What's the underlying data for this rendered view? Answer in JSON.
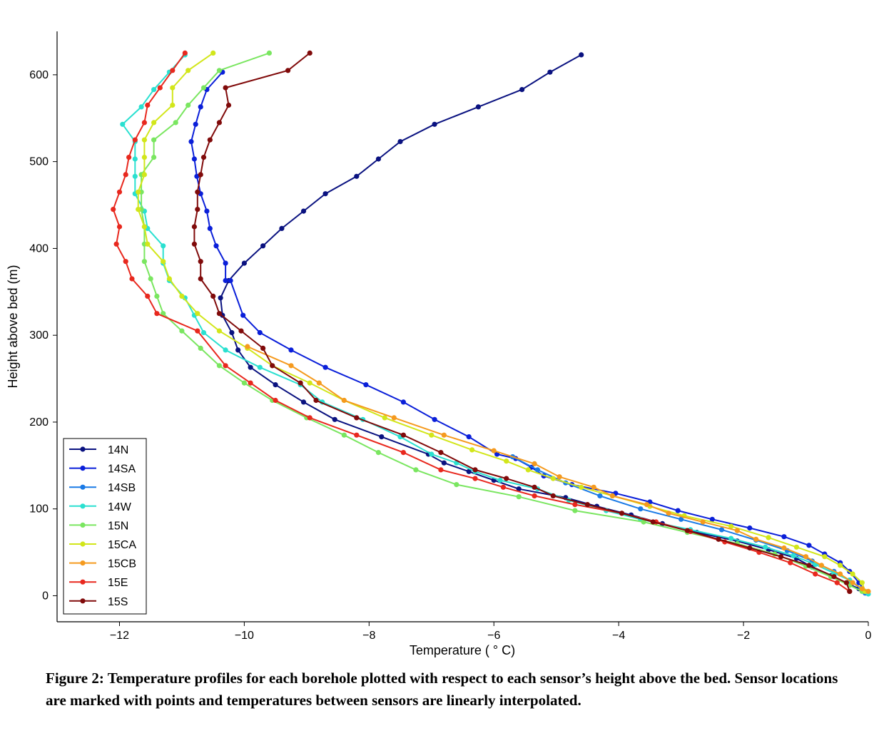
{
  "caption": "Figure 2: Temperature profiles for each borehole plotted with respect to each sensor’s height above the bed. Sensor locations are marked with points and temperatures between sensors are linearly interpolated.",
  "chart_data": {
    "type": "line",
    "title": "",
    "xlabel": "Temperature ( ° C)",
    "ylabel": "Height above bed (m)",
    "xlim": [
      -13,
      0
    ],
    "ylim": [
      -30,
      650
    ],
    "xticks": [
      -12,
      -10,
      -8,
      -6,
      -4,
      -2,
      0
    ],
    "yticks": [
      0,
      100,
      200,
      300,
      400,
      500,
      600
    ],
    "grid": false,
    "legend_position": "bottom-left",
    "series": [
      {
        "name": "14N",
        "color": "#0a1280",
        "points": [
          [
            -4.6,
            623
          ],
          [
            -5.1,
            603
          ],
          [
            -5.55,
            583
          ],
          [
            -6.25,
            563
          ],
          [
            -6.95,
            543
          ],
          [
            -7.5,
            523
          ],
          [
            -7.85,
            503
          ],
          [
            -8.2,
            483
          ],
          [
            -8.7,
            463
          ],
          [
            -9.05,
            443
          ],
          [
            -9.4,
            423
          ],
          [
            -9.7,
            403
          ],
          [
            -10.0,
            383
          ],
          [
            -10.25,
            363
          ],
          [
            -10.38,
            343
          ],
          [
            -10.35,
            323
          ],
          [
            -10.2,
            303
          ],
          [
            -10.1,
            283
          ],
          [
            -9.9,
            263
          ],
          [
            -9.5,
            243
          ],
          [
            -9.05,
            223
          ],
          [
            -8.55,
            203
          ],
          [
            -7.8,
            183
          ],
          [
            -7.05,
            163
          ],
          [
            -6.8,
            153
          ],
          [
            -6.4,
            143
          ],
          [
            -6.0,
            133
          ],
          [
            -5.6,
            123
          ],
          [
            -4.85,
            113
          ],
          [
            -4.35,
            103
          ],
          [
            -3.8,
            93
          ],
          [
            -3.3,
            83
          ],
          [
            -2.75,
            73
          ],
          [
            -2.1,
            63
          ],
          [
            -1.6,
            53
          ],
          [
            -1.15,
            43
          ],
          [
            -0.9,
            33
          ],
          [
            -0.6,
            23
          ],
          [
            -0.3,
            13
          ],
          [
            -0.15,
            8
          ]
        ]
      },
      {
        "name": "14SA",
        "color": "#0a1fd9",
        "points": [
          [
            -10.35,
            603
          ],
          [
            -10.6,
            583
          ],
          [
            -10.7,
            563
          ],
          [
            -10.78,
            543
          ],
          [
            -10.85,
            523
          ],
          [
            -10.8,
            503
          ],
          [
            -10.76,
            483
          ],
          [
            -10.7,
            463
          ],
          [
            -10.6,
            443
          ],
          [
            -10.55,
            423
          ],
          [
            -10.45,
            403
          ],
          [
            -10.3,
            383
          ],
          [
            -10.3,
            363
          ],
          [
            -10.22,
            363
          ],
          [
            -10.02,
            323
          ],
          [
            -9.75,
            303
          ],
          [
            -9.25,
            283
          ],
          [
            -8.7,
            263
          ],
          [
            -8.05,
            243
          ],
          [
            -7.45,
            223
          ],
          [
            -6.95,
            203
          ],
          [
            -6.4,
            183
          ],
          [
            -5.95,
            163
          ],
          [
            -5.65,
            158
          ],
          [
            -5.4,
            148
          ],
          [
            -5.2,
            138
          ],
          [
            -4.75,
            128
          ],
          [
            -4.05,
            118
          ],
          [
            -3.5,
            108
          ],
          [
            -3.05,
            98
          ],
          [
            -2.5,
            88
          ],
          [
            -1.9,
            78
          ],
          [
            -1.35,
            68
          ],
          [
            -0.95,
            58
          ],
          [
            -0.7,
            48
          ],
          [
            -0.45,
            38
          ],
          [
            -0.3,
            28
          ],
          [
            -0.15,
            15
          ],
          [
            -0.05,
            5
          ]
        ]
      },
      {
        "name": "14SB",
        "color": "#1a7ae6",
        "points": [
          [
            -5.7,
            160
          ],
          [
            -5.3,
            145
          ],
          [
            -4.85,
            130
          ],
          [
            -4.3,
            115
          ],
          [
            -3.65,
            100
          ],
          [
            -3.0,
            88
          ],
          [
            -2.35,
            76
          ],
          [
            -1.8,
            64
          ],
          [
            -1.3,
            52
          ],
          [
            -0.9,
            40
          ],
          [
            -0.55,
            28
          ],
          [
            -0.3,
            18
          ],
          [
            -0.12,
            8
          ],
          [
            -0.05,
            3
          ]
        ]
      },
      {
        "name": "14W",
        "color": "#2ae0d0",
        "points": [
          [
            -10.95,
            623
          ],
          [
            -11.2,
            603
          ],
          [
            -11.45,
            583
          ],
          [
            -11.65,
            563
          ],
          [
            -11.95,
            543
          ],
          [
            -11.75,
            523
          ],
          [
            -11.75,
            503
          ],
          [
            -11.75,
            483
          ],
          [
            -11.75,
            463
          ],
          [
            -11.6,
            443
          ],
          [
            -11.55,
            423
          ],
          [
            -11.3,
            403
          ],
          [
            -11.3,
            383
          ],
          [
            -11.2,
            363
          ],
          [
            -10.95,
            343
          ],
          [
            -10.8,
            323
          ],
          [
            -10.65,
            303
          ],
          [
            -10.3,
            283
          ],
          [
            -9.75,
            263
          ],
          [
            -9.1,
            243
          ],
          [
            -8.75,
            223
          ],
          [
            -8.1,
            203
          ],
          [
            -7.5,
            183
          ],
          [
            -7.0,
            163
          ],
          [
            -6.6,
            153
          ],
          [
            -6.3,
            143
          ],
          [
            -5.9,
            133
          ],
          [
            -5.3,
            123
          ],
          [
            -4.8,
            110
          ],
          [
            -4.2,
            98
          ],
          [
            -3.65,
            88
          ],
          [
            -2.85,
            76
          ],
          [
            -2.2,
            66
          ],
          [
            -1.65,
            56
          ],
          [
            -1.2,
            46
          ],
          [
            -0.85,
            36
          ],
          [
            -0.55,
            26
          ],
          [
            -0.3,
            18
          ],
          [
            -0.1,
            8
          ],
          [
            0.0,
            2
          ]
        ]
      },
      {
        "name": "15N",
        "color": "#7ae660",
        "points": [
          [
            -9.6,
            625
          ],
          [
            -10.4,
            605
          ],
          [
            -10.65,
            585
          ],
          [
            -10.9,
            565
          ],
          [
            -11.1,
            545
          ],
          [
            -11.45,
            525
          ],
          [
            -11.45,
            505
          ],
          [
            -11.65,
            485
          ],
          [
            -11.65,
            465
          ],
          [
            -11.65,
            445
          ],
          [
            -11.6,
            425
          ],
          [
            -11.6,
            405
          ],
          [
            -11.6,
            385
          ],
          [
            -11.5,
            365
          ],
          [
            -11.4,
            345
          ],
          [
            -11.3,
            325
          ],
          [
            -11.0,
            305
          ],
          [
            -10.7,
            285
          ],
          [
            -10.4,
            265
          ],
          [
            -10.0,
            245
          ],
          [
            -9.55,
            225
          ],
          [
            -9.0,
            205
          ],
          [
            -8.4,
            185
          ],
          [
            -7.85,
            165
          ],
          [
            -7.25,
            145
          ],
          [
            -6.6,
            128
          ],
          [
            -5.6,
            114
          ],
          [
            -4.7,
            98
          ],
          [
            -3.6,
            85
          ],
          [
            -2.9,
            73
          ],
          [
            -2.1,
            60
          ],
          [
            -1.5,
            48
          ],
          [
            -1.0,
            34
          ],
          [
            -0.6,
            22
          ],
          [
            -0.3,
            12
          ],
          [
            -0.1,
            5
          ]
        ]
      },
      {
        "name": "15CA",
        "color": "#d2e61a",
        "points": [
          [
            -10.5,
            625
          ],
          [
            -10.9,
            605
          ],
          [
            -11.15,
            585
          ],
          [
            -11.15,
            565
          ],
          [
            -11.45,
            545
          ],
          [
            -11.6,
            525
          ],
          [
            -11.6,
            505
          ],
          [
            -11.6,
            485
          ],
          [
            -11.7,
            465
          ],
          [
            -11.7,
            445
          ],
          [
            -11.6,
            425
          ],
          [
            -11.55,
            405
          ],
          [
            -11.3,
            385
          ],
          [
            -11.2,
            365
          ],
          [
            -11.0,
            345
          ],
          [
            -10.75,
            325
          ],
          [
            -10.4,
            305
          ],
          [
            -9.95,
            285
          ],
          [
            -9.55,
            265
          ],
          [
            -8.95,
            245
          ],
          [
            -8.4,
            225
          ],
          [
            -7.75,
            205
          ],
          [
            -7.0,
            185
          ],
          [
            -6.35,
            168
          ],
          [
            -5.8,
            155
          ],
          [
            -5.45,
            145
          ],
          [
            -5.05,
            135
          ],
          [
            -4.6,
            125
          ],
          [
            -4.1,
            115
          ],
          [
            -3.5,
            103
          ],
          [
            -2.95,
            92
          ],
          [
            -2.2,
            80
          ],
          [
            -1.6,
            67
          ],
          [
            -1.15,
            56
          ],
          [
            -0.7,
            45
          ],
          [
            -0.45,
            35
          ],
          [
            -0.25,
            25
          ],
          [
            -0.1,
            15
          ],
          [
            -0.05,
            5
          ]
        ]
      },
      {
        "name": "15CB",
        "color": "#f59a1e",
        "points": [
          [
            -9.95,
            287
          ],
          [
            -9.25,
            265
          ],
          [
            -8.8,
            245
          ],
          [
            -8.4,
            225
          ],
          [
            -7.6,
            205
          ],
          [
            -6.8,
            185
          ],
          [
            -6.0,
            167
          ],
          [
            -5.35,
            152
          ],
          [
            -4.95,
            137
          ],
          [
            -4.4,
            125
          ],
          [
            -4.1,
            115
          ],
          [
            -3.55,
            105
          ],
          [
            -3.2,
            95
          ],
          [
            -2.65,
            85
          ],
          [
            -2.1,
            75
          ],
          [
            -1.8,
            65
          ],
          [
            -1.35,
            55
          ],
          [
            -1.0,
            45
          ],
          [
            -0.75,
            35
          ],
          [
            -0.45,
            25
          ],
          [
            -0.25,
            15
          ],
          [
            -0.1,
            8
          ],
          [
            0.0,
            5
          ]
        ]
      },
      {
        "name": "15E",
        "color": "#e8281e",
        "points": [
          [
            -10.95,
            625
          ],
          [
            -11.15,
            605
          ],
          [
            -11.35,
            585
          ],
          [
            -11.55,
            565
          ],
          [
            -11.6,
            545
          ],
          [
            -11.75,
            525
          ],
          [
            -11.85,
            505
          ],
          [
            -11.9,
            485
          ],
          [
            -12.0,
            465
          ],
          [
            -12.1,
            445
          ],
          [
            -12.0,
            425
          ],
          [
            -12.05,
            405
          ],
          [
            -11.9,
            385
          ],
          [
            -11.8,
            365
          ],
          [
            -11.55,
            345
          ],
          [
            -11.4,
            325
          ],
          [
            -10.75,
            305
          ],
          [
            -10.3,
            265
          ],
          [
            -9.9,
            245
          ],
          [
            -9.5,
            225
          ],
          [
            -8.95,
            205
          ],
          [
            -8.2,
            185
          ],
          [
            -7.45,
            165
          ],
          [
            -6.85,
            145
          ],
          [
            -6.3,
            135
          ],
          [
            -5.85,
            125
          ],
          [
            -5.35,
            115
          ],
          [
            -4.7,
            105
          ],
          [
            -3.95,
            95
          ],
          [
            -3.4,
            85
          ],
          [
            -2.85,
            74
          ],
          [
            -2.3,
            62
          ],
          [
            -1.75,
            50
          ],
          [
            -1.25,
            38
          ],
          [
            -0.85,
            25
          ],
          [
            -0.5,
            15
          ],
          [
            -0.3,
            5
          ]
        ]
      },
      {
        "name": "15S",
        "color": "#800a0a",
        "points": [
          [
            -8.95,
            625
          ],
          [
            -9.3,
            605
          ],
          [
            -10.3,
            585
          ],
          [
            -10.25,
            565
          ],
          [
            -10.4,
            545
          ],
          [
            -10.55,
            525
          ],
          [
            -10.65,
            505
          ],
          [
            -10.7,
            485
          ],
          [
            -10.75,
            465
          ],
          [
            -10.75,
            445
          ],
          [
            -10.8,
            425
          ],
          [
            -10.8,
            405
          ],
          [
            -10.7,
            385
          ],
          [
            -10.7,
            365
          ],
          [
            -10.5,
            345
          ],
          [
            -10.4,
            325
          ],
          [
            -10.05,
            305
          ],
          [
            -9.7,
            285
          ],
          [
            -9.55,
            265
          ],
          [
            -9.1,
            245
          ],
          [
            -8.85,
            225
          ],
          [
            -8.2,
            205
          ],
          [
            -7.45,
            185
          ],
          [
            -6.85,
            165
          ],
          [
            -6.3,
            145
          ],
          [
            -5.8,
            135
          ],
          [
            -5.35,
            125
          ],
          [
            -5.05,
            115
          ],
          [
            -4.5,
            105
          ],
          [
            -3.95,
            95
          ],
          [
            -3.45,
            85
          ],
          [
            -2.9,
            75
          ],
          [
            -2.4,
            65
          ],
          [
            -1.9,
            55
          ],
          [
            -1.4,
            45
          ],
          [
            -0.95,
            35
          ],
          [
            -0.55,
            22
          ],
          [
            -0.35,
            15
          ],
          [
            -0.3,
            5
          ]
        ]
      }
    ]
  }
}
